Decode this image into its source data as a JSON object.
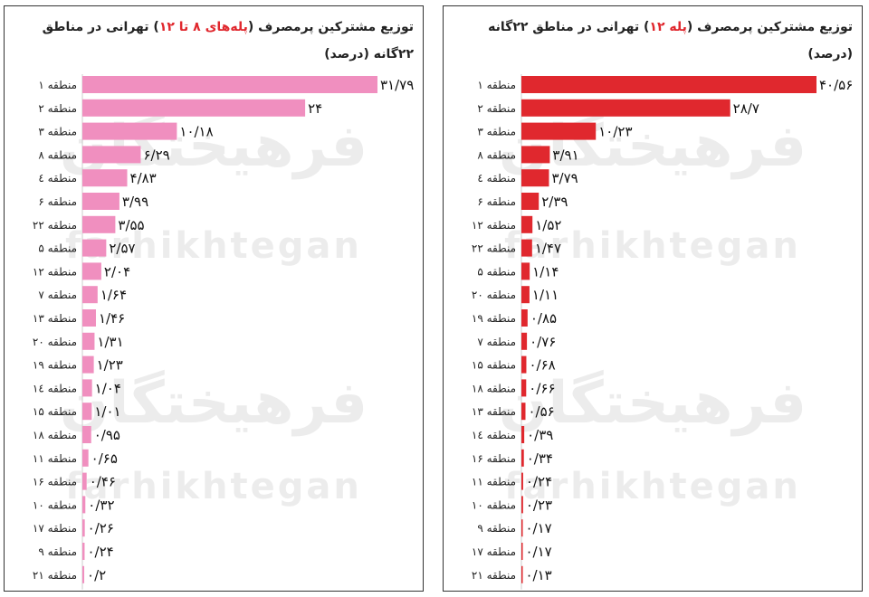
{
  "charts": [
    {
      "title": {
        "before": "توزیع مشترکین پرمصرف (",
        "highlight": "پله‌های ۸ تا ۱۲",
        "after": ") تهرانی در مناطق ۲۲گانه (درصد)"
      },
      "watermark": {
        "fa": "فرهیختگان",
        "en": "farhikhtegan"
      },
      "color": "#f08fbf"
    },
    {
      "title": {
        "before": "توزیع مشترکین پرمصرف (",
        "highlight": "پله ۱۲",
        "after": ") تهرانی در مناطق ۲۲گانه (درصد)"
      },
      "watermark": {
        "fa": "فرهیختگان",
        "en": "farhikhtegan"
      },
      "color": "#e0282e"
    }
  ],
  "chart_data": [
    {
      "type": "bar",
      "orientation": "horizontal",
      "color": "#f08fbf",
      "categories": [
        "منطقه ۱",
        "منطقه ۲",
        "منطقه ۳",
        "منطقه ۸",
        "منطقه ٤",
        "منطقه ۶",
        "منطقه ۲۲",
        "منطقه ۵",
        "منطقه ۱۲",
        "منطقه ۷",
        "منطقه ۱۳",
        "منطقه ۲۰",
        "منطقه ۱۹",
        "منطقه ۱٤",
        "منطقه ۱۵",
        "منطقه ۱۸",
        "منطقه ۱۱",
        "منطقه ۱۶",
        "منطقه ۱۰",
        "منطقه ۱۷",
        "منطقه ۹",
        "منطقه ۲۱"
      ],
      "values": [
        31.79,
        24,
        10.18,
        6.29,
        4.83,
        3.99,
        3.55,
        2.57,
        2.04,
        1.64,
        1.46,
        1.31,
        1.23,
        1.04,
        1.01,
        0.95,
        0.65,
        0.46,
        0.32,
        0.26,
        0.24,
        0.2
      ],
      "value_labels": [
        "۳۱/۷۹",
        "۲۴",
        "۱۰/۱۸",
        "۶/۲۹",
        "۴/۸۳",
        "۳/۹۹",
        "۳/۵۵",
        "۲/۵۷",
        "۲/۰۴",
        "۱/۶۴",
        "۱/۴۶",
        "۱/۳۱",
        "۱/۲۳",
        "۱/۰۴",
        "۱/۰۱",
        "۰/۹۵",
        "۰/۶۵",
        "۰/۴۶",
        "۰/۳۲",
        "۰/۲۶",
        "۰/۲۴",
        "۰/۲"
      ],
      "xlim": [
        0,
        31.79
      ]
    },
    {
      "type": "bar",
      "orientation": "horizontal",
      "color": "#e0282e",
      "categories": [
        "منطقه ۱",
        "منطقه ۲",
        "منطقه ۳",
        "منطقه ۸",
        "منطقه ٤",
        "منطقه ۶",
        "منطقه ۱۲",
        "منطقه ۲۲",
        "منطقه ۵",
        "منطقه ۲۰",
        "منطقه ۱۹",
        "منطقه ۷",
        "منطقه ۱۵",
        "منطقه ۱۸",
        "منطقه ۱۳",
        "منطقه ۱٤",
        "منطقه ۱۶",
        "منطقه ۱۱",
        "منطقه ۱۰",
        "منطقه ۹",
        "منطقه ۱۷",
        "منطقه ۲۱"
      ],
      "values": [
        40.56,
        28.7,
        10.23,
        3.91,
        3.79,
        2.39,
        1.52,
        1.47,
        1.14,
        1.11,
        0.85,
        0.76,
        0.68,
        0.66,
        0.56,
        0.39,
        0.34,
        0.24,
        0.23,
        0.17,
        0.17,
        0.13
      ],
      "value_labels": [
        "۴۰/۵۶",
        "۲۸/۷",
        "۱۰/۲۳",
        "۳/۹۱",
        "۳/۷۹",
        "۲/۳۹",
        "۱/۵۲",
        "۱/۴۷",
        "۱/۱۴",
        "۱/۱۱",
        "۰/۸۵",
        "۰/۷۶",
        "۰/۶۸",
        "۰/۶۶",
        "۰/۵۶",
        "۰/۳۹",
        "۰/۳۴",
        "۰/۲۴",
        "۰/۲۳",
        "۰/۱۷",
        "۰/۱۷",
        "۰/۱۳"
      ],
      "xlim": [
        0,
        40.56
      ]
    }
  ]
}
